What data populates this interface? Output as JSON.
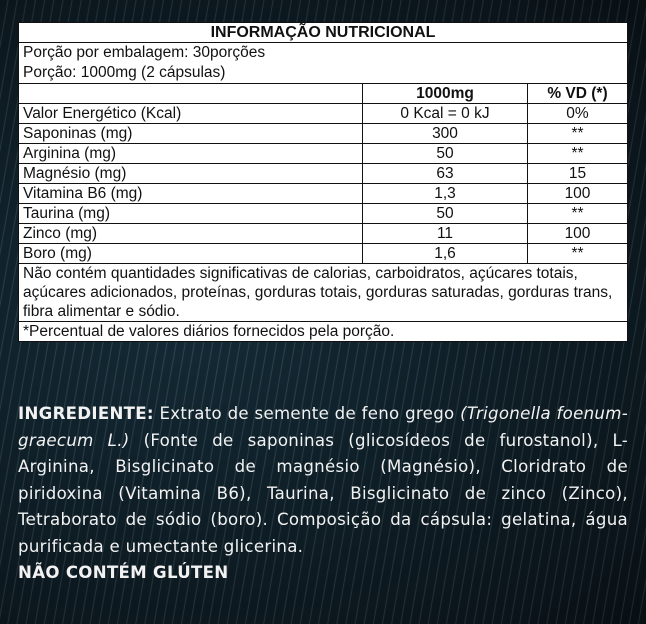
{
  "table": {
    "title": "INFORMAÇÃO NUTRICIONAL",
    "portions_per_package": "Porção por embalagem: 30porções",
    "portion": "Porção: 1000mg (2 cápsulas)",
    "headers": [
      "",
      "1000mg",
      "% VD (*)"
    ],
    "rows": [
      [
        "Valor Energético (Kcal)",
        "0 Kcal = 0 kJ",
        "0%"
      ],
      [
        "Saponinas (mg)",
        "300",
        "**"
      ],
      [
        "Arginina (mg)",
        "50",
        "**"
      ],
      [
        "Magnésio (mg)",
        "63",
        "15"
      ],
      [
        "Vitamina B6 (mg)",
        "1,3",
        "100"
      ],
      [
        "Taurina (mg)",
        "50",
        "**"
      ],
      [
        "Zinco (mg)",
        "11",
        "100"
      ],
      [
        "Boro (mg)",
        "1,6",
        "**"
      ]
    ],
    "note": "Não contém quantidades significativas de calorias, carboidratos, açúcares totais, açúcares adicionados, proteínas, gorduras totais, gorduras saturadas, gorduras trans, fibra alimentar e sódio.",
    "footnote": "*Percentual de valores diários fornecidos pela porção."
  },
  "ingredients": {
    "label": "INGREDIENTE:",
    "text1": " Extrato de semente de feno grego ",
    "italic": "(Trigonella foenum-graecum L.)",
    "text2": " (Fonte de saponinas (glicosídeos de furostanol), L-Arginina, Bisglicinato de magnésio (Magnésio), Cloridrato de piridoxina (Vitamina B6), Taurina, Bisglicinato de zinco (Zinco), Tetraborato de sódio (boro). Composição da cápsula: gelatina, água purificada e umectante glicerina.",
    "gluten": "NÃO CONTÉM GLÚTEN"
  }
}
